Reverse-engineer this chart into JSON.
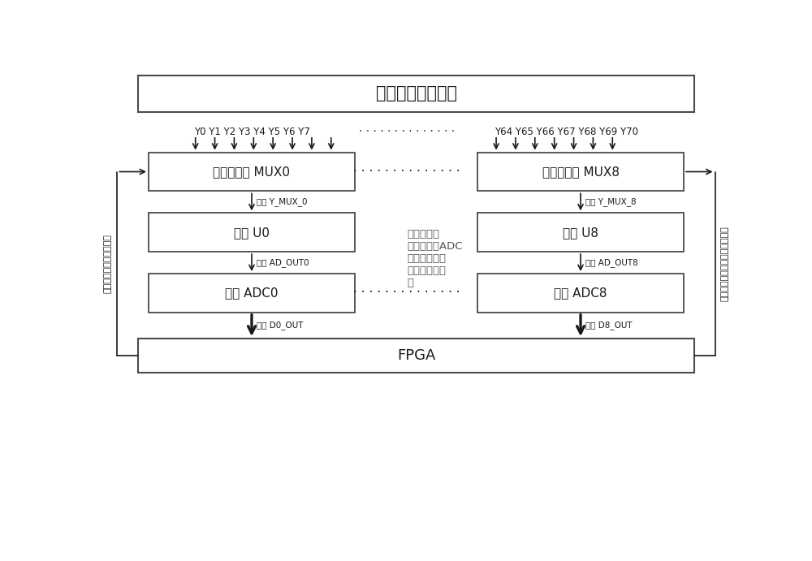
{
  "title": "屏接收信号连接器",
  "fpga_label": "FPGA",
  "left_side_label": "九片多选器共用使能信号",
  "right_side_label": "九片多选器选择信号连同一信号",
  "y_labels_left": "Y0 Y1 Y2 Y3 Y4 Y5 Y6 Y7",
  "y_dots_mid": "· · · · · · · · · · · · · ·",
  "y_labels_right": "Y64 Y65 Y66 Y67 Y68 Y69 Y70",
  "mux0_label": "八选一模拟 MUX0",
  "mux8_label": "八选一模拟 MUX8",
  "mux_dots": "· · · · · · · · · · · · · ·",
  "op0_label": "运放 U0",
  "op8_label": "运放 U8",
  "adc0_label": "十位 ADC0",
  "adc8_label": "十位 ADC8",
  "adc_dots": "· · · · · · · · · · · · · ·",
  "out_mux0": "输出 Y_MUX_0",
  "out_mux8": "输出 Y_MUX_8",
  "out_op0": "输出 AD_OUT0",
  "out_op8": "输出 AD_OUT8",
  "out_adc0": "输出 D0_OUT",
  "out_adc8": "输出 D8_OUT",
  "center_note": "这样的多选\n器、运放、ADC\n组成的一路基\n本单元共有九\n路",
  "bg_color": "#ffffff",
  "box_edge_color": "#4a4a4a",
  "text_color": "#1a1a1a",
  "arrow_color": "#1a1a1a",
  "note_color": "#555555"
}
